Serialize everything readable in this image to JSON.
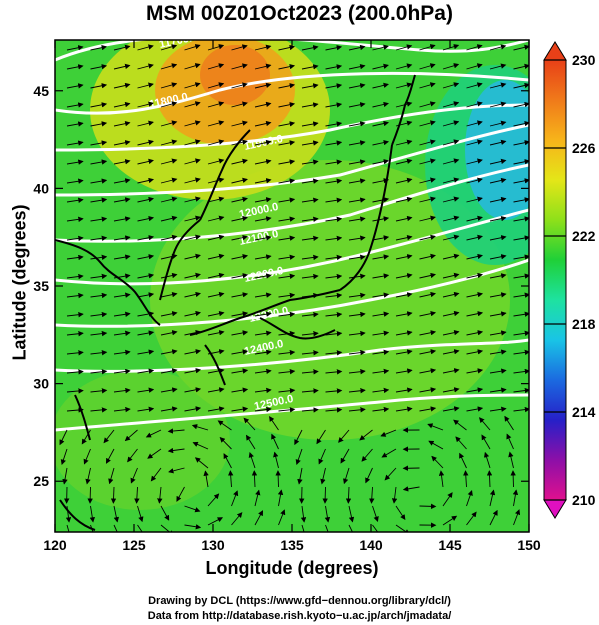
{
  "title": "MSM 00Z01Oct2023 (200.0hPa)",
  "x_axis": {
    "label": "Longitude (degrees)",
    "range": [
      120,
      150
    ],
    "ticks": [
      "120",
      "125",
      "130",
      "135",
      "140",
      "145",
      "150"
    ]
  },
  "y_axis": {
    "label": "Latitude  (degrees)",
    "range": [
      22.4,
      47.6
    ],
    "ticks": [
      "25",
      "30",
      "35",
      "40",
      "45"
    ]
  },
  "colorbar": {
    "range": [
      210,
      230
    ],
    "ticks": [
      "210",
      "214",
      "218",
      "222",
      "226",
      "230"
    ],
    "colors": [
      "#e0108e",
      "#8d0fa8",
      "#2620c8",
      "#1b6ae0",
      "#19c4e6",
      "#1ee2a0",
      "#1fd038",
      "#8ee01a",
      "#e4e618",
      "#f7b41a",
      "#f07a1a",
      "#e84018"
    ]
  },
  "contours": {
    "labels": [
      "11700.0",
      "11800.0",
      "11900.0",
      "12000.0",
      "12100.0",
      "12200.0",
      "12300.0",
      "12400.0",
      "12500.0"
    ]
  },
  "credits": {
    "line1": "Drawing by DCL (https://www.gfd−dennou.org/library/dcl/)",
    "line2": "Data from http://database.rish.kyoto−u.ac.jp/arch/jmadata/"
  }
}
